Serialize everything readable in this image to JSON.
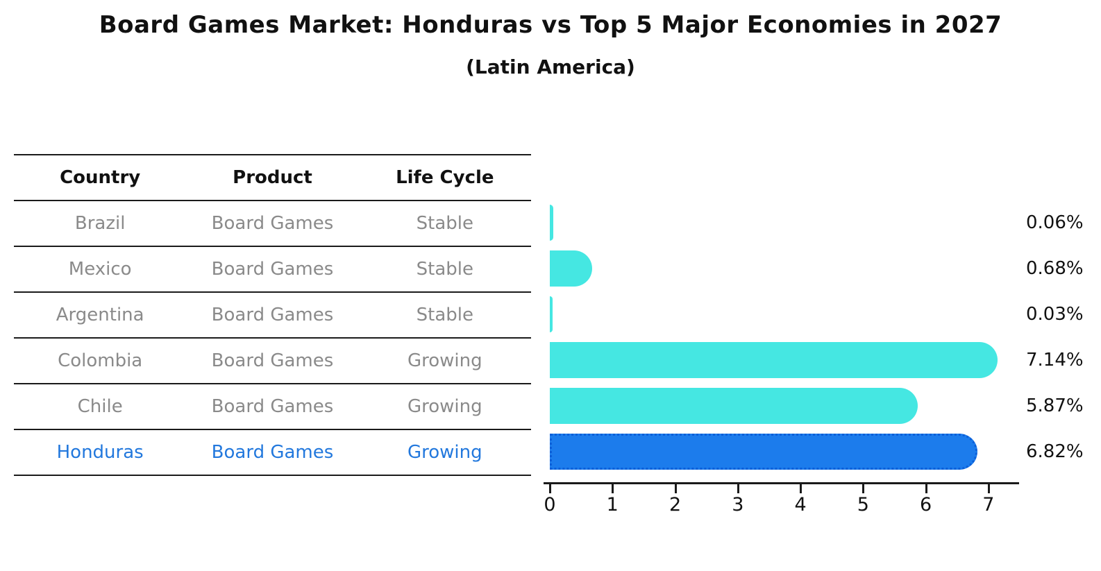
{
  "title": "Board Games Market: Honduras vs Top 5 Major Economies in 2027",
  "subtitle": "(Latin America)",
  "table": {
    "headers": [
      "Country",
      "Product",
      "Life Cycle"
    ],
    "rows": [
      {
        "country": "Brazil",
        "product": "Board Games",
        "life_cycle": "Stable",
        "highlight": false
      },
      {
        "country": "Mexico",
        "product": "Board Games",
        "life_cycle": "Stable",
        "highlight": false
      },
      {
        "country": "Argentina",
        "product": "Board Games",
        "life_cycle": "Stable",
        "highlight": false
      },
      {
        "country": "Colombia",
        "product": "Board Games",
        "life_cycle": "Growing",
        "highlight": false
      },
      {
        "country": "Chile",
        "product": "Board Games",
        "life_cycle": "Growing",
        "highlight": false
      },
      {
        "country": "Honduras",
        "product": "Board Games",
        "life_cycle": "Growing",
        "highlight": true
      }
    ]
  },
  "chart_data": {
    "type": "bar",
    "orientation": "horizontal",
    "categories": [
      "Brazil",
      "Mexico",
      "Argentina",
      "Colombia",
      "Chile",
      "Honduras"
    ],
    "values": [
      0.06,
      0.68,
      0.03,
      7.14,
      5.87,
      6.82
    ],
    "labels": [
      "0.06%",
      "0.68%",
      "0.03%",
      "7.14%",
      "5.87%",
      "6.82%"
    ],
    "x_ticks": [
      0,
      1,
      2,
      3,
      4,
      5,
      6,
      7
    ],
    "xlim": [
      0,
      7.5
    ],
    "xlabel": "",
    "ylabel": "",
    "grid": false,
    "legend": false,
    "highlight_index": 5,
    "bar_color": "#45e7e2",
    "highlight_color": "#1c7cec",
    "highlight_border_color": "#0c5fd8",
    "text_color": "#111111",
    "muted_text_color": "#8a8a8a",
    "highlight_text_color": "#2278dd"
  }
}
